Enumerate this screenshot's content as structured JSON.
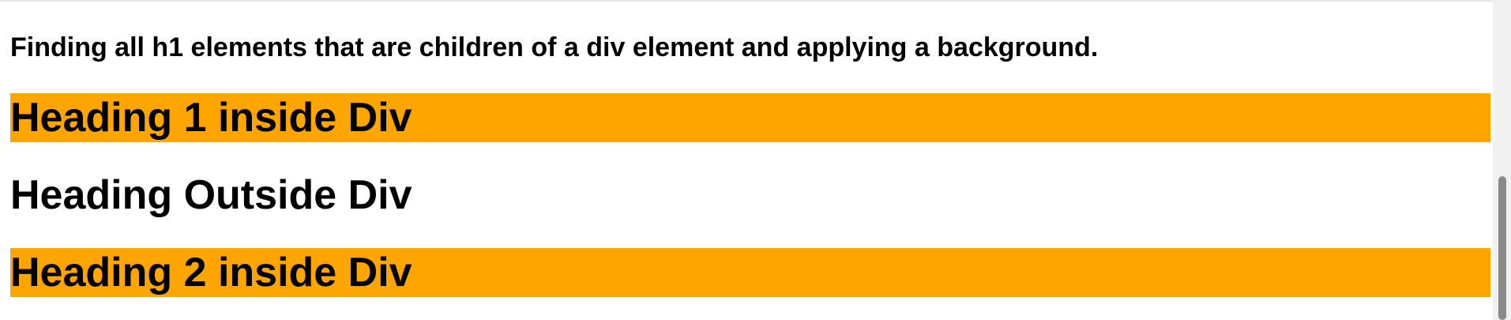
{
  "page": {
    "intro": "Finding all h1 elements that are children of a div element and applying a background.",
    "headings": [
      {
        "text": "Heading 1 inside Div",
        "highlighted": true
      },
      {
        "text": "Heading Outside Div",
        "highlighted": false
      },
      {
        "text": "Heading 2 inside Div",
        "highlighted": true
      }
    ]
  },
  "colors": {
    "highlight": "#FFA500",
    "text": "#000000",
    "background": "#ffffff",
    "scrollbar_thumb": "#8a8a8a"
  },
  "scrollbar": {
    "position_fraction": 1.0
  }
}
